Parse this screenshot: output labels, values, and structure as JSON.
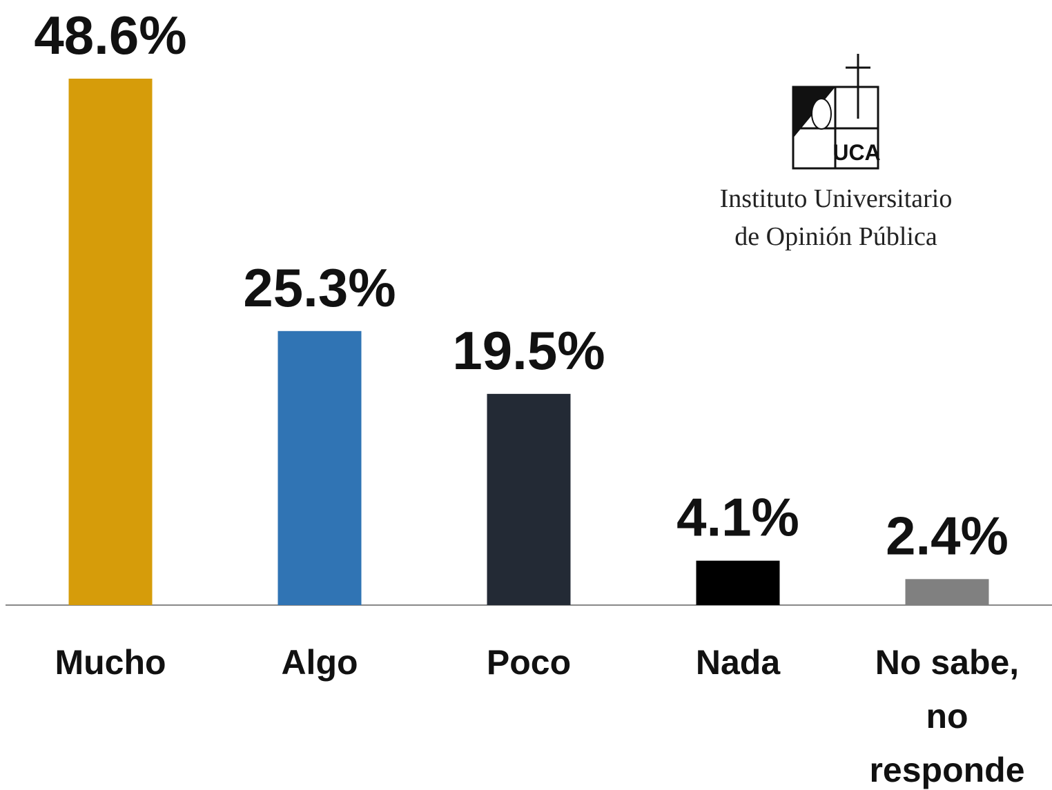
{
  "chart_data": {
    "type": "bar",
    "categories": [
      "Mucho",
      "Algo",
      "Poco",
      "Nada",
      "No sabe, no responde"
    ],
    "values": [
      48.6,
      25.3,
      19.5,
      4.1,
      2.4
    ],
    "value_labels": [
      "48.6%",
      "25.3%",
      "19.5%",
      "4.1%",
      "2.4%"
    ],
    "colors": [
      "#d69c0a",
      "#3074b4",
      "#232a35",
      "#000000",
      "#808080"
    ],
    "logo": {
      "mark": "UCA",
      "lines": [
        "Instituto Universitario",
        "de Opinión Pública"
      ]
    }
  }
}
